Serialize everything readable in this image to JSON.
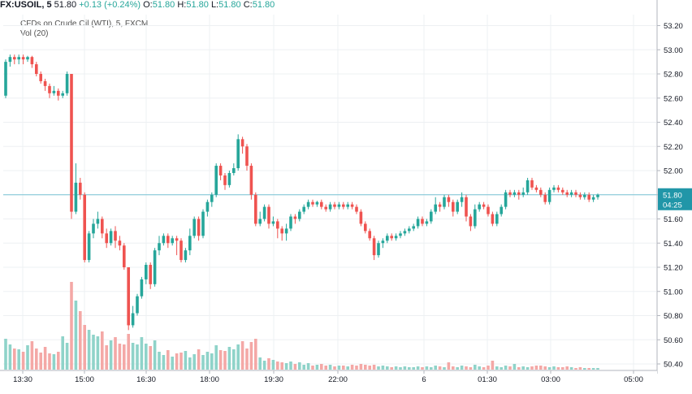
{
  "header": {
    "symbol": "FX:USOIL, 5",
    "last": "51.80",
    "change": "+0.13 (+0.24%)",
    "o_label": "O:",
    "o_value": "51.80",
    "h_label": "H:",
    "h_value": "51.80",
    "l_label": "L:",
    "l_value": "51.80",
    "c_label": "C:",
    "c_value": "51.80"
  },
  "legend": {
    "title": "CFDs on Crude Oil (WTI), 5, FXCM",
    "volume": "Vol (20)"
  },
  "colors": {
    "up": "#26a69a",
    "down": "#ef5350",
    "vol_up": "#8fd3c9",
    "vol_down": "#f4a8a6",
    "last_price_line": "#79c3d6",
    "last_price_tag": "#2196a8"
  },
  "price_axis": {
    "ticks": [
      "53.20",
      "53.00",
      "52.80",
      "52.60",
      "52.40",
      "52.20",
      "52.00",
      "51.80",
      "51.60",
      "51.40",
      "51.20",
      "51.00",
      "50.80",
      "50.60",
      "50.40"
    ],
    "last_price_label": "51.80",
    "countdown_label": "04:25"
  },
  "time_axis": {
    "ticks": [
      "13:30",
      "15:00",
      "16:30",
      "18:00",
      "19:30",
      "22:00",
      "6",
      "01:30",
      "03:00",
      "05:00"
    ]
  },
  "chart_data": {
    "type": "candlestick",
    "title": "CFDs on Crude Oil (WTI), 5, FXCM",
    "ylim": [
      50.37,
      53.26
    ],
    "grid": true,
    "last_price": 51.8,
    "candles": [
      [
        52.62,
        52.9,
        52.92,
        52.6
      ],
      [
        52.9,
        52.94,
        52.96,
        52.86
      ],
      [
        52.94,
        52.92,
        52.96,
        52.88
      ],
      [
        52.92,
        52.94,
        52.96,
        52.88
      ],
      [
        52.94,
        52.92,
        52.96,
        52.88
      ],
      [
        52.92,
        52.94,
        52.95,
        52.9
      ],
      [
        52.94,
        52.88,
        52.95,
        52.85
      ],
      [
        52.88,
        52.8,
        52.9,
        52.78
      ],
      [
        52.8,
        52.74,
        52.82,
        52.72
      ],
      [
        52.74,
        52.7,
        52.76,
        52.66
      ],
      [
        52.7,
        52.64,
        52.72,
        52.6
      ],
      [
        52.64,
        52.66,
        52.7,
        52.62
      ],
      [
        52.66,
        52.62,
        52.68,
        52.58
      ],
      [
        52.62,
        52.64,
        52.66,
        52.6
      ],
      [
        52.64,
        52.8,
        52.82,
        52.62
      ],
      [
        52.8,
        51.66,
        52.8,
        51.6
      ],
      [
        51.66,
        51.9,
        52.06,
        51.64
      ],
      [
        51.9,
        51.8,
        51.94,
        51.76
      ],
      [
        51.8,
        51.26,
        51.82,
        51.24
      ],
      [
        51.26,
        51.48,
        51.5,
        51.24
      ],
      [
        51.48,
        51.56,
        51.6,
        51.44
      ],
      [
        51.56,
        51.6,
        51.66,
        51.52
      ],
      [
        51.6,
        51.48,
        51.62,
        51.44
      ],
      [
        51.48,
        51.4,
        51.52,
        51.36
      ],
      [
        51.4,
        51.5,
        51.52,
        51.38
      ],
      [
        51.5,
        51.42,
        51.54,
        51.36
      ],
      [
        51.42,
        51.38,
        51.46,
        51.34
      ],
      [
        51.38,
        51.2,
        51.4,
        51.18
      ],
      [
        51.2,
        50.72,
        51.2,
        50.68
      ],
      [
        50.72,
        50.82,
        50.88,
        50.7
      ],
      [
        50.82,
        50.96,
        50.98,
        50.8
      ],
      [
        50.96,
        51.1,
        51.12,
        50.94
      ],
      [
        51.1,
        51.22,
        51.24,
        51.06
      ],
      [
        51.22,
        51.06,
        51.24,
        51.02
      ],
      [
        51.06,
        51.34,
        51.36,
        51.04
      ],
      [
        51.34,
        51.4,
        51.46,
        51.3
      ],
      [
        51.4,
        51.46,
        51.48,
        51.38
      ],
      [
        51.46,
        51.4,
        51.48,
        51.36
      ],
      [
        51.4,
        51.44,
        51.46,
        51.38
      ],
      [
        51.44,
        51.42,
        51.46,
        51.3
      ],
      [
        51.42,
        51.26,
        51.44,
        51.24
      ],
      [
        51.26,
        51.34,
        51.36,
        51.24
      ],
      [
        51.34,
        51.46,
        51.52,
        51.3
      ],
      [
        51.46,
        51.6,
        51.62,
        51.44
      ],
      [
        51.6,
        51.46,
        51.62,
        51.42
      ],
      [
        51.46,
        51.66,
        51.68,
        51.44
      ],
      [
        51.66,
        51.74,
        51.76,
        51.62
      ],
      [
        51.74,
        51.8,
        51.82,
        51.7
      ],
      [
        51.8,
        52.04,
        52.06,
        51.78
      ],
      [
        52.04,
        51.96,
        52.06,
        51.92
      ],
      [
        51.96,
        51.88,
        51.98,
        51.84
      ],
      [
        51.88,
        51.98,
        52.0,
        51.86
      ],
      [
        51.98,
        52.02,
        52.06,
        51.96
      ],
      [
        52.02,
        52.26,
        52.3,
        52.0
      ],
      [
        52.26,
        52.2,
        52.28,
        52.14
      ],
      [
        52.2,
        52.04,
        52.22,
        52.0
      ],
      [
        52.04,
        51.8,
        52.06,
        51.76
      ],
      [
        51.8,
        51.56,
        51.82,
        51.54
      ],
      [
        51.56,
        51.6,
        51.66,
        51.54
      ],
      [
        51.6,
        51.7,
        51.72,
        51.58
      ],
      [
        51.7,
        51.56,
        51.72,
        51.52
      ],
      [
        51.56,
        51.58,
        51.62,
        51.54
      ],
      [
        51.58,
        51.52,
        51.6,
        51.44
      ],
      [
        51.52,
        51.48,
        51.54,
        51.42
      ],
      [
        51.48,
        51.52,
        51.56,
        51.42
      ],
      [
        51.52,
        51.62,
        51.64,
        51.5
      ],
      [
        51.62,
        51.6,
        51.64,
        51.56
      ],
      [
        51.6,
        51.66,
        51.68,
        51.58
      ],
      [
        51.66,
        51.7,
        51.72,
        51.64
      ],
      [
        51.7,
        51.74,
        51.76,
        51.68
      ],
      [
        51.74,
        51.72,
        51.76,
        51.7
      ],
      [
        51.72,
        51.74,
        51.75,
        51.7
      ],
      [
        51.74,
        51.7,
        51.76,
        51.68
      ],
      [
        51.7,
        51.68,
        51.72,
        51.66
      ],
      [
        51.68,
        51.72,
        51.74,
        51.66
      ],
      [
        51.72,
        51.7,
        51.74,
        51.68
      ],
      [
        51.7,
        51.72,
        51.74,
        51.68
      ],
      [
        51.72,
        51.7,
        51.74,
        51.68
      ],
      [
        51.7,
        51.72,
        51.74,
        51.68
      ],
      [
        51.72,
        51.7,
        51.74,
        51.68
      ],
      [
        51.7,
        51.66,
        51.72,
        51.64
      ],
      [
        51.66,
        51.56,
        51.68,
        51.54
      ],
      [
        51.56,
        51.5,
        51.58,
        51.48
      ],
      [
        51.5,
        51.44,
        51.52,
        51.42
      ],
      [
        51.44,
        51.3,
        51.46,
        51.26
      ],
      [
        51.3,
        51.4,
        51.42,
        51.28
      ],
      [
        51.4,
        51.42,
        51.44,
        51.36
      ],
      [
        51.42,
        51.46,
        51.48,
        51.4
      ],
      [
        51.46,
        51.44,
        51.48,
        51.42
      ],
      [
        51.44,
        51.46,
        51.48,
        51.42
      ],
      [
        51.46,
        51.48,
        51.5,
        51.44
      ],
      [
        51.48,
        51.5,
        51.52,
        51.46
      ],
      [
        51.5,
        51.52,
        51.54,
        51.48
      ],
      [
        51.52,
        51.54,
        51.56,
        51.5
      ],
      [
        51.54,
        51.6,
        51.62,
        51.52
      ],
      [
        51.6,
        51.56,
        51.62,
        51.54
      ],
      [
        51.56,
        51.58,
        51.6,
        51.54
      ],
      [
        51.58,
        51.66,
        51.68,
        51.56
      ],
      [
        51.66,
        51.72,
        51.78,
        51.64
      ],
      [
        51.72,
        51.7,
        51.74,
        51.66
      ],
      [
        51.7,
        51.78,
        51.8,
        51.68
      ],
      [
        51.78,
        51.74,
        51.8,
        51.7
      ],
      [
        51.74,
        51.66,
        51.76,
        51.62
      ],
      [
        51.66,
        51.74,
        51.76,
        51.64
      ],
      [
        51.74,
        51.78,
        51.82,
        51.7
      ],
      [
        51.78,
        51.62,
        51.8,
        51.58
      ],
      [
        51.62,
        51.54,
        51.64,
        51.5
      ],
      [
        51.54,
        51.68,
        51.72,
        51.52
      ],
      [
        51.68,
        51.72,
        51.74,
        51.66
      ],
      [
        51.72,
        51.7,
        51.74,
        51.68
      ],
      [
        51.7,
        51.64,
        51.72,
        51.62
      ],
      [
        51.64,
        51.56,
        51.66,
        51.54
      ],
      [
        51.56,
        51.64,
        51.66,
        51.54
      ],
      [
        51.64,
        51.7,
        51.72,
        51.62
      ],
      [
        51.7,
        51.82,
        51.84,
        51.68
      ],
      [
        51.82,
        51.8,
        51.84,
        51.78
      ],
      [
        51.8,
        51.82,
        51.84,
        51.78
      ],
      [
        51.82,
        51.8,
        51.84,
        51.76
      ],
      [
        51.8,
        51.82,
        51.86,
        51.78
      ],
      [
        51.82,
        51.92,
        51.94,
        51.8
      ],
      [
        51.92,
        51.86,
        51.94,
        51.84
      ],
      [
        51.86,
        51.84,
        51.88,
        51.82
      ],
      [
        51.84,
        51.8,
        51.86,
        51.78
      ],
      [
        51.8,
        51.74,
        51.82,
        51.72
      ],
      [
        51.74,
        51.84,
        51.86,
        51.72
      ],
      [
        51.84,
        51.86,
        51.88,
        51.82
      ],
      [
        51.86,
        51.84,
        51.88,
        51.82
      ],
      [
        51.84,
        51.82,
        51.86,
        51.8
      ],
      [
        51.82,
        51.8,
        51.84,
        51.78
      ],
      [
        51.8,
        51.82,
        51.84,
        51.78
      ],
      [
        51.82,
        51.8,
        51.84,
        51.78
      ],
      [
        51.8,
        51.78,
        51.82,
        51.76
      ],
      [
        51.78,
        51.8,
        51.82,
        51.76
      ],
      [
        51.8,
        51.76,
        51.82,
        51.74
      ],
      [
        51.76,
        51.78,
        51.8,
        51.74
      ],
      [
        51.78,
        51.8,
        51.81,
        51.76
      ]
    ],
    "volume": [
      38,
      31,
      26,
      25,
      22,
      30,
      35,
      26,
      21,
      28,
      20,
      19,
      22,
      41,
      33,
      108,
      85,
      72,
      55,
      49,
      43,
      41,
      47,
      30,
      36,
      40,
      32,
      31,
      44,
      33,
      31,
      40,
      32,
      29,
      36,
      22,
      18,
      24,
      16,
      20,
      21,
      23,
      15,
      19,
      25,
      18,
      22,
      20,
      30,
      24,
      23,
      28,
      25,
      31,
      35,
      26,
      34,
      38,
      15,
      11,
      14,
      12,
      10,
      9,
      8,
      10,
      7,
      9,
      6,
      8,
      5,
      6,
      7,
      5,
      6,
      4,
      5,
      5,
      4,
      6,
      5,
      7,
      6,
      5,
      6,
      4,
      5,
      4,
      3,
      4,
      3,
      4,
      3,
      3,
      4,
      3,
      4,
      3,
      5,
      4,
      3,
      9,
      4,
      3,
      5,
      4,
      3,
      6,
      4,
      3,
      5,
      11,
      4,
      3,
      5,
      4,
      7,
      3,
      4,
      3,
      4,
      5,
      5,
      4,
      3,
      4,
      3,
      3,
      4,
      3,
      2,
      3,
      2,
      2,
      2,
      2
    ]
  }
}
